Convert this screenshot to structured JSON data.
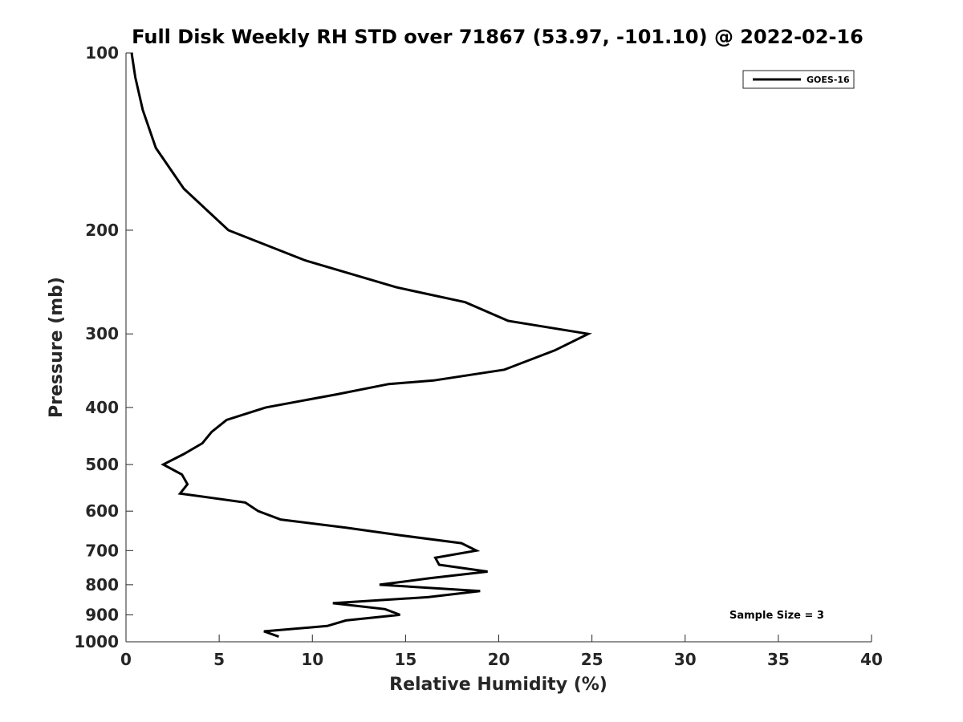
{
  "chart_data": {
    "type": "line",
    "title": "Full Disk Weekly RH STD over 71867 (53.97, -101.10) @ 2022-02-16",
    "xlabel": "Relative Humidity (%)",
    "ylabel": "Pressure (mb)",
    "xlim": [
      0,
      40
    ],
    "ylim": [
      100,
      1000
    ],
    "yscale": "log",
    "y_inverted": true,
    "grid": false,
    "legend_position": "top-right",
    "x_ticks": [
      "0",
      "5",
      "10",
      "15",
      "20",
      "25",
      "30",
      "35",
      "40"
    ],
    "y_ticks": [
      "100",
      "200",
      "300",
      "400",
      "500",
      "600",
      "700",
      "800",
      "900",
      "1000"
    ],
    "series": [
      {
        "name": "GOES-16",
        "color": "#000000",
        "x": [
          0.3,
          0.5,
          0.9,
          1.6,
          3.1,
          5.5,
          9.6,
          14.5,
          18.2,
          20.5,
          24.8,
          23.0,
          20.3,
          16.5,
          14.1,
          11.3,
          7.5,
          5.4,
          4.6,
          4.1,
          3.1,
          2.0,
          3.0,
          3.3,
          2.9,
          6.4,
          7.1,
          8.3,
          11.8,
          14.8,
          18.0,
          18.8,
          16.6,
          16.8,
          19.4,
          16.3,
          13.6,
          19.0,
          16.2,
          11.1,
          13.9,
          14.7,
          11.8,
          10.8,
          7.4,
          8.2
        ],
        "y": [
          100,
          110,
          125,
          145,
          170,
          200,
          225,
          250,
          265,
          285,
          300,
          320,
          345,
          360,
          365,
          380,
          400,
          420,
          440,
          460,
          480,
          500,
          520,
          540,
          560,
          580,
          600,
          620,
          640,
          660,
          680,
          700,
          720,
          740,
          760,
          780,
          800,
          820,
          840,
          860,
          880,
          900,
          920,
          940,
          960,
          980
        ]
      }
    ],
    "annotations": [
      "Sample Size = 3"
    ]
  }
}
